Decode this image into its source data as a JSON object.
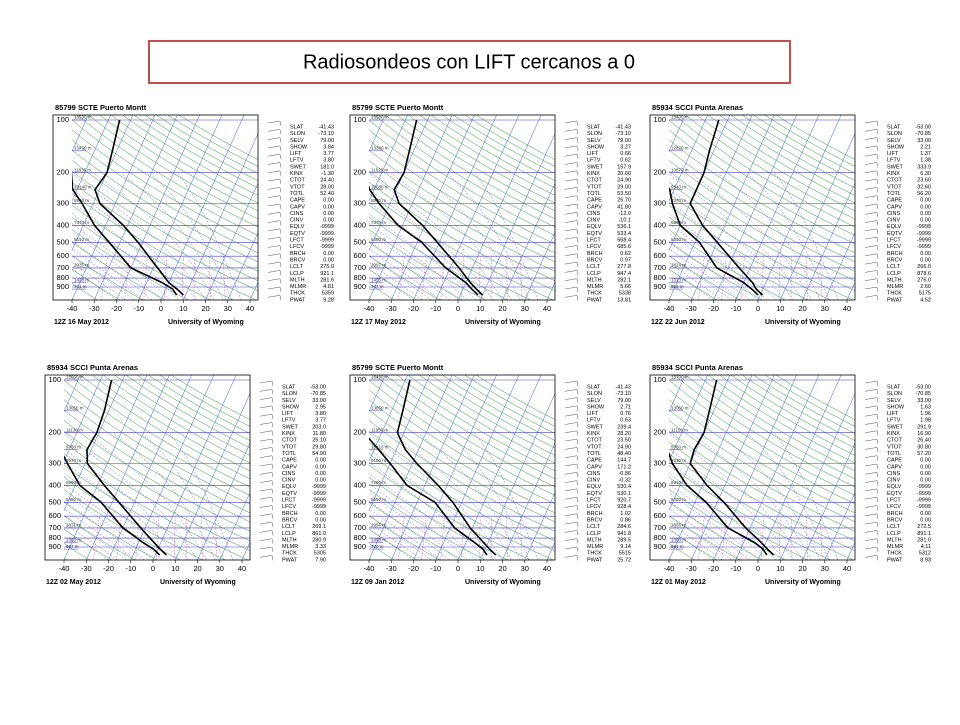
{
  "header": {
    "title": "Radiosondeos con LIFT cercanos a 0"
  },
  "axes": {
    "pressure_ticks": [
      100,
      200,
      300,
      400,
      500,
      600,
      700,
      800,
      900
    ],
    "temperature_ticks": [
      -40,
      -30,
      -20,
      -10,
      0,
      10,
      20,
      30,
      40
    ],
    "source": "University of Wyoming",
    "index_labels": [
      "SLAT",
      "SLON",
      "SELV",
      "SHOW",
      "LIFT",
      "LFTV",
      "SWET",
      "KINX",
      "CTOT",
      "VTOT",
      "TOTL",
      "CAPE",
      "CAPV",
      "CINS",
      "CINV",
      "EQLV",
      "EQTV",
      "LFCT",
      "LFCV",
      "BRCH",
      "BRCV",
      "LCLT",
      "LCLP",
      "MLTH",
      "MLMR",
      "THCK",
      "PWAT"
    ],
    "height_levels": [
      100,
      150,
      200,
      250,
      300,
      400,
      500,
      700,
      850,
      925
    ],
    "profile_levels": [
      1000,
      925,
      850,
      700,
      500,
      400,
      300,
      250,
      200,
      150,
      100
    ]
  },
  "panels": [
    {
      "station": "85799 SCTE Puerto Montt",
      "date": "12Z 16 May 2012",
      "indices": [
        "-41.43",
        "-73.10",
        "79.00",
        "3.84",
        "3.77",
        "3.80",
        "181.0",
        "-1.30",
        "24.40",
        "28.00",
        "52.40",
        "0.00",
        "0.00",
        "0.00",
        "0.00",
        "-9999",
        "-9999",
        "-9999",
        "-9999",
        "0.00",
        "0.00",
        "275.0",
        "921.1",
        "281.6",
        "4.81",
        "5359",
        "9.28"
      ],
      "heights": [
        "16530 m",
        "13430 m",
        "11830 m",
        "10140 m",
        "8990 m",
        "7370 m",
        "5510 m",
        "2935 m",
        "1428 m",
        "741 m"
      ],
      "temperature": [
        9,
        5,
        0,
        -8,
        -22,
        -32,
        -47,
        -52,
        -50,
        -52,
        -55
      ],
      "dewpoint": [
        6,
        3,
        -3,
        -20,
        -35,
        -45,
        -55,
        -62,
        -66,
        -72,
        -80
      ]
    },
    {
      "station": "85799 SCTE Puerto Montt",
      "date": "12Z 17 May 2012",
      "indices": [
        "-41.43",
        "-73.10",
        "79.00",
        "3.27",
        "0.66",
        "0.62",
        "157.9",
        "20.60",
        "24.90",
        "29.00",
        "53.50",
        "26.70",
        "41.80",
        "-12.0",
        "-10.1",
        "536.1",
        "533.4",
        "668.4",
        "685.6",
        "0.62",
        "0.97",
        "277.8",
        "947.4",
        "282.1",
        "5.66",
        "5338",
        "13.81"
      ],
      "heights": [
        "16580 m",
        "13380 m",
        "11820 m",
        "10080 m",
        "8970 m",
        "7370 m",
        "5480 m",
        "2997 m",
        "1455 m",
        "747 m"
      ],
      "temperature": [
        10,
        6,
        2,
        -6,
        -21,
        -31,
        -46,
        -51,
        -50,
        -52,
        -55
      ],
      "dewpoint": [
        8,
        4,
        0,
        -12,
        -28,
        -42,
        -55,
        -62,
        -68,
        -75,
        -82
      ]
    },
    {
      "station": "85934 SCCI Punta Arenas",
      "date": "12Z 22 Jun 2012",
      "indices": [
        "-53.00",
        "-70.85",
        "33.00",
        "2.21",
        "1.37",
        "1.38",
        "333.9",
        "6.30",
        "23.60",
        "32.60",
        "56.20",
        "0.00",
        "0.00",
        "0.00",
        "0.00",
        "-9999",
        "-9999",
        "-9999",
        "-9999",
        "0.00",
        "0.00",
        "266.0",
        "878.6",
        "276.0",
        "2.60",
        "5175",
        "4.52"
      ],
      "heights": [
        "15400 m",
        "12820 m",
        "10870 m",
        "9540 m",
        "8370 m",
        "6890 m",
        "5330 m",
        "2824 m",
        "1313 m",
        "619 m"
      ],
      "temperature": [
        1,
        -3,
        -6,
        -15,
        -30,
        -40,
        -50,
        -50,
        -50,
        -52,
        -54
      ],
      "dewpoint": [
        -1,
        -5,
        -10,
        -25,
        -38,
        -50,
        -58,
        -62,
        -70,
        -75,
        -80
      ]
    },
    {
      "station": "85934 SCCI Punta Arenas",
      "date": "12Z 02 May 2012",
      "indices": [
        "-53.00",
        "-70.85",
        "33.00",
        "2.95",
        "3.80",
        "3.77",
        "203.0",
        "11.80",
        "25.10",
        "29.80",
        "54.90",
        "0.00",
        "0.00",
        "0.00",
        "0.00",
        "-9999",
        "-9999",
        "-9999",
        "-9999",
        "0.00",
        "0.00",
        "269.1",
        "861.0",
        "280.9",
        "3.33",
        "5305",
        "7.90"
      ],
      "heights": [
        "15660 m",
        "13050 m",
        "11130 m",
        "9780 m",
        "8570 m",
        "6990 m",
        "5460 m",
        "2831 m",
        "1363 m",
        "667 m"
      ],
      "temperature": [
        5,
        1,
        -3,
        -12,
        -27,
        -37,
        -49,
        -52,
        -51,
        -52,
        -55
      ],
      "dewpoint": [
        2,
        -2,
        -8,
        -20,
        -35,
        -48,
        -58,
        -64,
        -70,
        -75,
        -80
      ]
    },
    {
      "station": "85799 SCTE Puerto Montt",
      "date": "12Z 09 Jan 2012",
      "indices": [
        "-41.43",
        "-73.10",
        "79.00",
        "2.71",
        "0.76",
        "0.63",
        "239.4",
        "28.20",
        "23.50",
        "24.90",
        "48.40",
        "144.7",
        "171.2",
        "-0.86",
        "-0.32",
        "530.4",
        "530.1",
        "920.7",
        "928.4",
        "1.02",
        "0.86",
        "284.6",
        "941.8",
        "289.5",
        "9.14",
        "5515",
        "25.72"
      ],
      "heights": [
        "16490 m",
        "13850 m",
        "11950 m",
        "10410 m",
        "9150 m",
        "7280 m",
        "5550 m",
        "2956 m",
        "1498 m",
        "770 m"
      ],
      "temperature": [
        16,
        12,
        8,
        -1,
        -14,
        -24,
        -38,
        -46,
        -53,
        -55,
        -58
      ],
      "dewpoint": [
        12,
        9,
        4,
        -8,
        -22,
        -38,
        -50,
        -58,
        -68,
        -74,
        -82
      ]
    },
    {
      "station": "85934 SCCI Punta Arenas",
      "date": "12Z 01 May 2012",
      "indices": [
        "-53.00",
        "-70.85",
        "33.00",
        "1.63",
        "1.96",
        "1.98",
        "291.9",
        "16.90",
        "26.40",
        "30.80",
        "57.20",
        "0.00",
        "0.00",
        "0.00",
        "0.00",
        "-9999",
        "-9999",
        "-9999",
        "-9999",
        "0.00",
        "0.00",
        "272.5",
        "891.1",
        "281.0",
        "4.11",
        "5312",
        "8.93"
      ],
      "heights": [
        "15700 m",
        "13050 m",
        "11150 m",
        "9780 m",
        "8530 m",
        "6910 m",
        "5420 m",
        "2856 m",
        "1360 m",
        "664 m"
      ],
      "temperature": [
        6,
        2,
        -2,
        -12,
        -27,
        -38,
        -50,
        -51,
        -50,
        -52,
        -55
      ],
      "dewpoint": [
        3,
        0,
        -5,
        -20,
        -35,
        -47,
        -58,
        -63,
        -70,
        -75,
        -80
      ]
    }
  ]
}
